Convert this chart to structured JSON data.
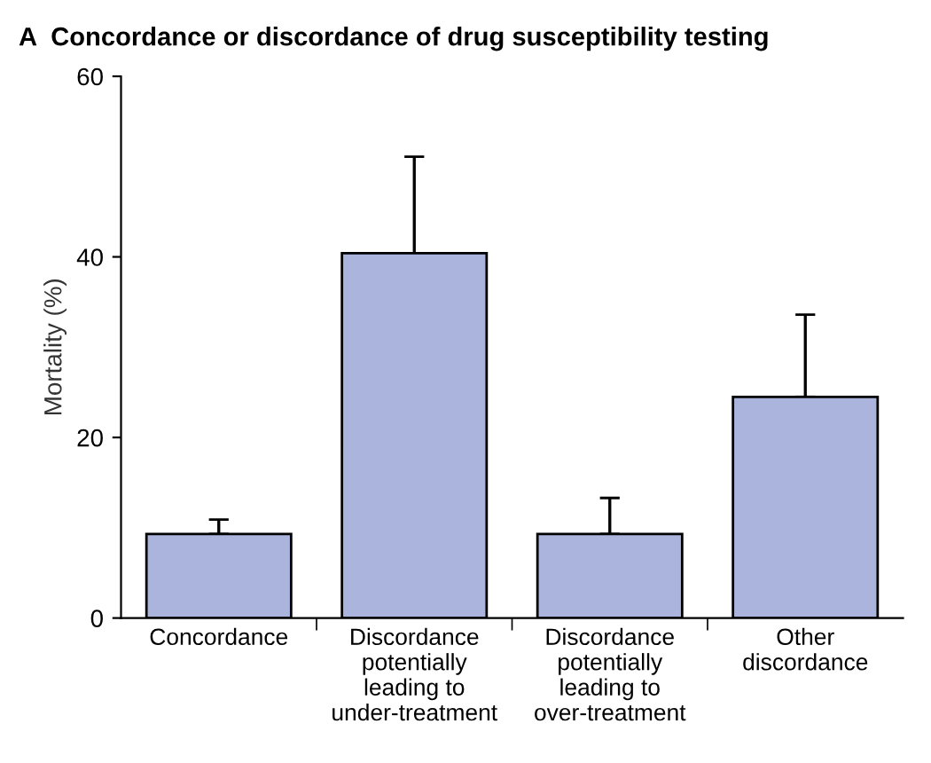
{
  "chart_data": {
    "type": "bar",
    "title": "A  Concordance or discordance of drug susceptibility testing",
    "ylabel": "Mortality (%)",
    "categories": [
      "Concordance",
      "Discordance\npotentially\nleading to\nunder-treatment",
      "Discordance\npotentially\nleading to\nover-treatment",
      "Other\ndiscordance"
    ],
    "values": [
      9.3,
      40.4,
      9.3,
      24.5
    ],
    "errors": [
      [
        9.3,
        10.9
      ],
      [
        40.4,
        51.1
      ],
      [
        9.3,
        13.3
      ],
      [
        24.5,
        33.6
      ]
    ],
    "color": "#aab4dc",
    "ylim": [
      0,
      60
    ],
    "yticks": [
      0,
      20,
      40,
      60
    ],
    "grid": false,
    "legend": false
  }
}
